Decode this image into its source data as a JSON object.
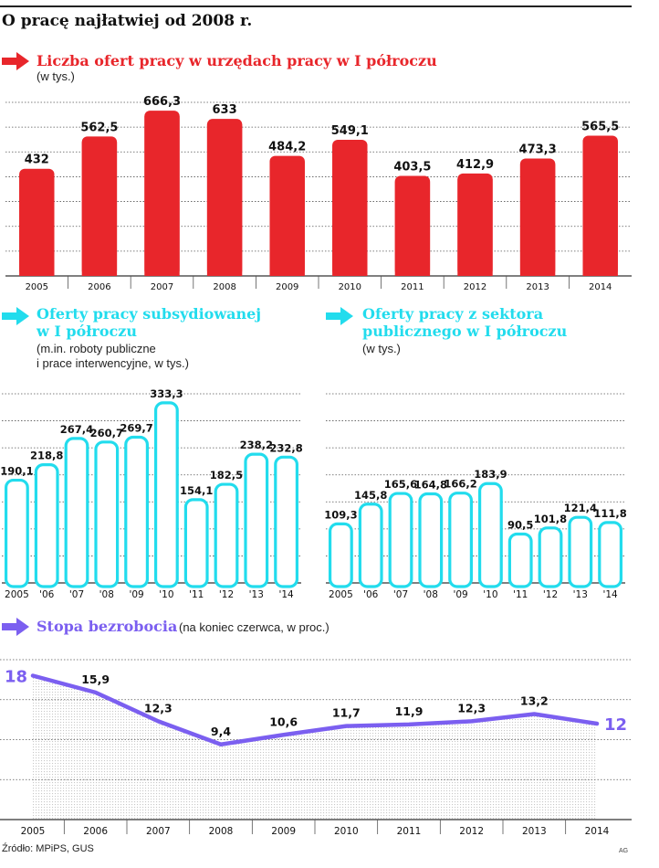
{
  "page": {
    "title": "O pracę najłatwiej od 2008 r.",
    "source": "Źródło: MPiPS, GUS",
    "credit": "AG"
  },
  "colors": {
    "red": "#e8262b",
    "cyan": "#22dced",
    "purple": "#7b5ff0",
    "grid": "#555555",
    "stipple": "#c8c8c8"
  },
  "sections": {
    "offers": {
      "title": "Liczba ofert pracy w urzędach pracy w I półroczu",
      "subtitle": "(w tys.)"
    },
    "subsidized": {
      "title_line1": "Oferty pracy subsydiowanej",
      "title_line2": "w I  półroczu",
      "subtitle_line1": "(m.in. roboty publiczne",
      "subtitle_line2": "i prace interwencyjne, w tys.)"
    },
    "public": {
      "title_line1": "Oferty pracy z sektora",
      "title_line2": "publicznego w I półroczu",
      "subtitle": "(w tys.)"
    },
    "unemployment": {
      "title": "Stopa bezrobocia",
      "subtitle": "(na koniec czerwca, w proc.)"
    }
  },
  "icons": [
    "arrow-right-icon"
  ],
  "chart_data": [
    {
      "id": "offers",
      "type": "bar",
      "title": "Liczba ofert pracy w urzędach pracy w I półroczu",
      "ylabel": "(w tys.)",
      "categories": [
        "2005",
        "2006",
        "2007",
        "2008",
        "2009",
        "2010",
        "2011",
        "2012",
        "2013",
        "2014"
      ],
      "values": [
        432,
        562.5,
        666.3,
        633,
        484.2,
        549.1,
        403.5,
        412.9,
        473.3,
        565.5
      ],
      "value_labels": [
        "432",
        "562,5",
        "666,3",
        "633",
        "484,2",
        "549,1",
        "403,5",
        "412,9",
        "473,3",
        "565,5"
      ],
      "ylim": [
        0,
        700
      ],
      "gridlines": [
        0,
        100,
        200,
        300,
        400,
        500,
        600,
        700
      ],
      "grid": true,
      "color": "#e8262b"
    },
    {
      "id": "subsidized",
      "type": "bar",
      "title": "Oferty pracy subsydiowanej w I  półroczu",
      "ylabel": "(m.in. roboty publiczne i prace interwencyjne, w tys.)",
      "categories": [
        "2005",
        "'06",
        "'07",
        "'08",
        "'09",
        "'10",
        "'11",
        "'12",
        "'13",
        "'14"
      ],
      "values": [
        190.1,
        218.8,
        267.4,
        260.7,
        269.7,
        333.3,
        154.1,
        182.5,
        238.2,
        232.8
      ],
      "value_labels": [
        "190,1",
        "218,8",
        "267,4",
        "260,7",
        "269,7",
        "333,3",
        "154,1",
        "182,5",
        "238,2",
        "232,8"
      ],
      "ylim": [
        0,
        350
      ],
      "gridlines": [
        0,
        50,
        100,
        150,
        200,
        250,
        300,
        350
      ],
      "grid": true,
      "color": "#22dced"
    },
    {
      "id": "public",
      "type": "bar",
      "title": "Oferty pracy z sektora publicznego w I półroczu",
      "ylabel": "(w tys.)",
      "categories": [
        "2005",
        "'06",
        "'07",
        "'08",
        "'09",
        "'10",
        "'11",
        "'12",
        "'13",
        "'14"
      ],
      "values": [
        109.3,
        145.8,
        165.6,
        164.8,
        166.2,
        183.9,
        90.5,
        101.8,
        121.4,
        111.8
      ],
      "value_labels": [
        "109,3",
        "145,8",
        "165,6",
        "164,8",
        "166,2",
        "183,9",
        "90,5",
        "101,8",
        "121,4",
        "111,8"
      ],
      "ylim": [
        0,
        350
      ],
      "gridlines": [
        0,
        50,
        100,
        150,
        200,
        250,
        300,
        350
      ],
      "grid": true,
      "color": "#22dced"
    },
    {
      "id": "unemployment",
      "type": "area",
      "title": "Stopa bezrobocia",
      "ylabel": "(na koniec czerwca, w proc.)",
      "categories": [
        "2005",
        "2006",
        "2007",
        "2008",
        "2009",
        "2010",
        "2011",
        "2012",
        "2013",
        "2014"
      ],
      "values": [
        18,
        15.9,
        12.3,
        9.4,
        10.6,
        11.7,
        11.9,
        12.3,
        13.2,
        12
      ],
      "value_labels": [
        "18",
        "15,9",
        "12,3",
        "9,4",
        "10,6",
        "11,7",
        "11,9",
        "12,3",
        "13,2",
        "12"
      ],
      "ylim": [
        0,
        20
      ],
      "gridlines": [
        5,
        10,
        15,
        20
      ],
      "grid": true,
      "color": "#7b5ff0"
    }
  ]
}
